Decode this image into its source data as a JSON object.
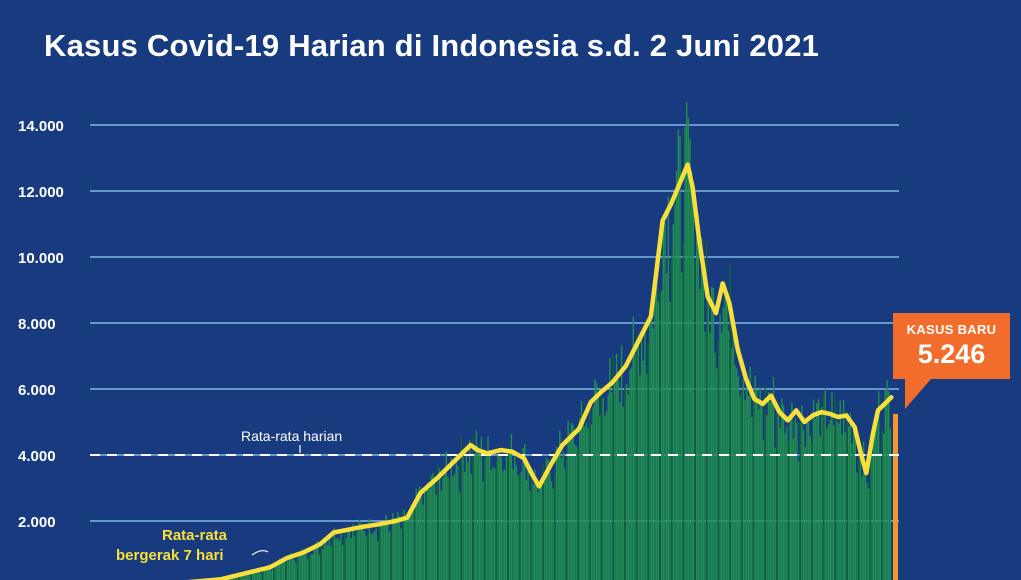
{
  "chart_data": {
    "type": "bar",
    "title": "Kasus Covid-19 Harian di Indonesia s.d. 2 Juni 2021",
    "xlabel": "",
    "ylabel": "",
    "ylim": [
      0,
      14500
    ],
    "y_ticks": [
      2000,
      4000,
      6000,
      8000,
      10000,
      12000,
      14000
    ],
    "y_tick_labels": [
      "2.000",
      "4.000",
      "6.000",
      "8.000",
      "10.000",
      "12.000",
      "14.000"
    ],
    "grid": true,
    "colors": {
      "background": "#183a7e",
      "bars": "#1f8f4e",
      "bars_dark": "#15613a",
      "moving_average": "#f7e03b",
      "latest_bar": "#f5952b",
      "callout": "#f26d2b",
      "grid": "#7fb6e6"
    },
    "average_line": {
      "value": 4000,
      "label": "Rata-rata harian"
    },
    "moving_average_label": [
      "Rata-rata",
      "bergerak 7 hari"
    ],
    "latest": {
      "label": "KASUS BARU",
      "value": 5246,
      "value_text": "5.246"
    },
    "trend_keyframes": [
      [
        0,
        0
      ],
      [
        30,
        100
      ],
      [
        60,
        230
      ],
      [
        90,
        600
      ],
      [
        100,
        880
      ],
      [
        110,
        1050
      ],
      [
        120,
        1300
      ],
      [
        128,
        1650
      ],
      [
        135,
        1720
      ],
      [
        145,
        1820
      ],
      [
        155,
        1900
      ],
      [
        165,
        2000
      ],
      [
        172,
        2100
      ],
      [
        180,
        2850
      ],
      [
        190,
        3300
      ],
      [
        200,
        3800
      ],
      [
        210,
        4300
      ],
      [
        214,
        4150
      ],
      [
        220,
        4050
      ],
      [
        228,
        4150
      ],
      [
        235,
        4100
      ],
      [
        242,
        3900
      ],
      [
        247,
        3400
      ],
      [
        251,
        3050
      ],
      [
        258,
        3700
      ],
      [
        265,
        4300
      ],
      [
        275,
        4800
      ],
      [
        282,
        5600
      ],
      [
        288,
        5900
      ],
      [
        295,
        6200
      ],
      [
        303,
        6700
      ],
      [
        310,
        7400
      ],
      [
        318,
        8200
      ],
      [
        325,
        11100
      ],
      [
        330,
        11600
      ],
      [
        335,
        12200
      ],
      [
        340,
        12800
      ],
      [
        343,
        12100
      ],
      [
        347,
        10500
      ],
      [
        352,
        8800
      ],
      [
        357,
        8300
      ],
      [
        361,
        9200
      ],
      [
        365,
        8600
      ],
      [
        370,
        7200
      ],
      [
        375,
        6300
      ],
      [
        380,
        5700
      ],
      [
        385,
        5550
      ],
      [
        390,
        5800
      ],
      [
        395,
        5300
      ],
      [
        400,
        5050
      ],
      [
        405,
        5350
      ],
      [
        410,
        5000
      ],
      [
        415,
        5200
      ],
      [
        420,
        5300
      ],
      [
        425,
        5250
      ],
      [
        430,
        5150
      ],
      [
        435,
        5200
      ],
      [
        440,
        4850
      ],
      [
        444,
        4000
      ],
      [
        447,
        3450
      ],
      [
        451,
        4650
      ],
      [
        454,
        5350
      ],
      [
        458,
        5550
      ],
      [
        462,
        5750
      ]
    ]
  }
}
